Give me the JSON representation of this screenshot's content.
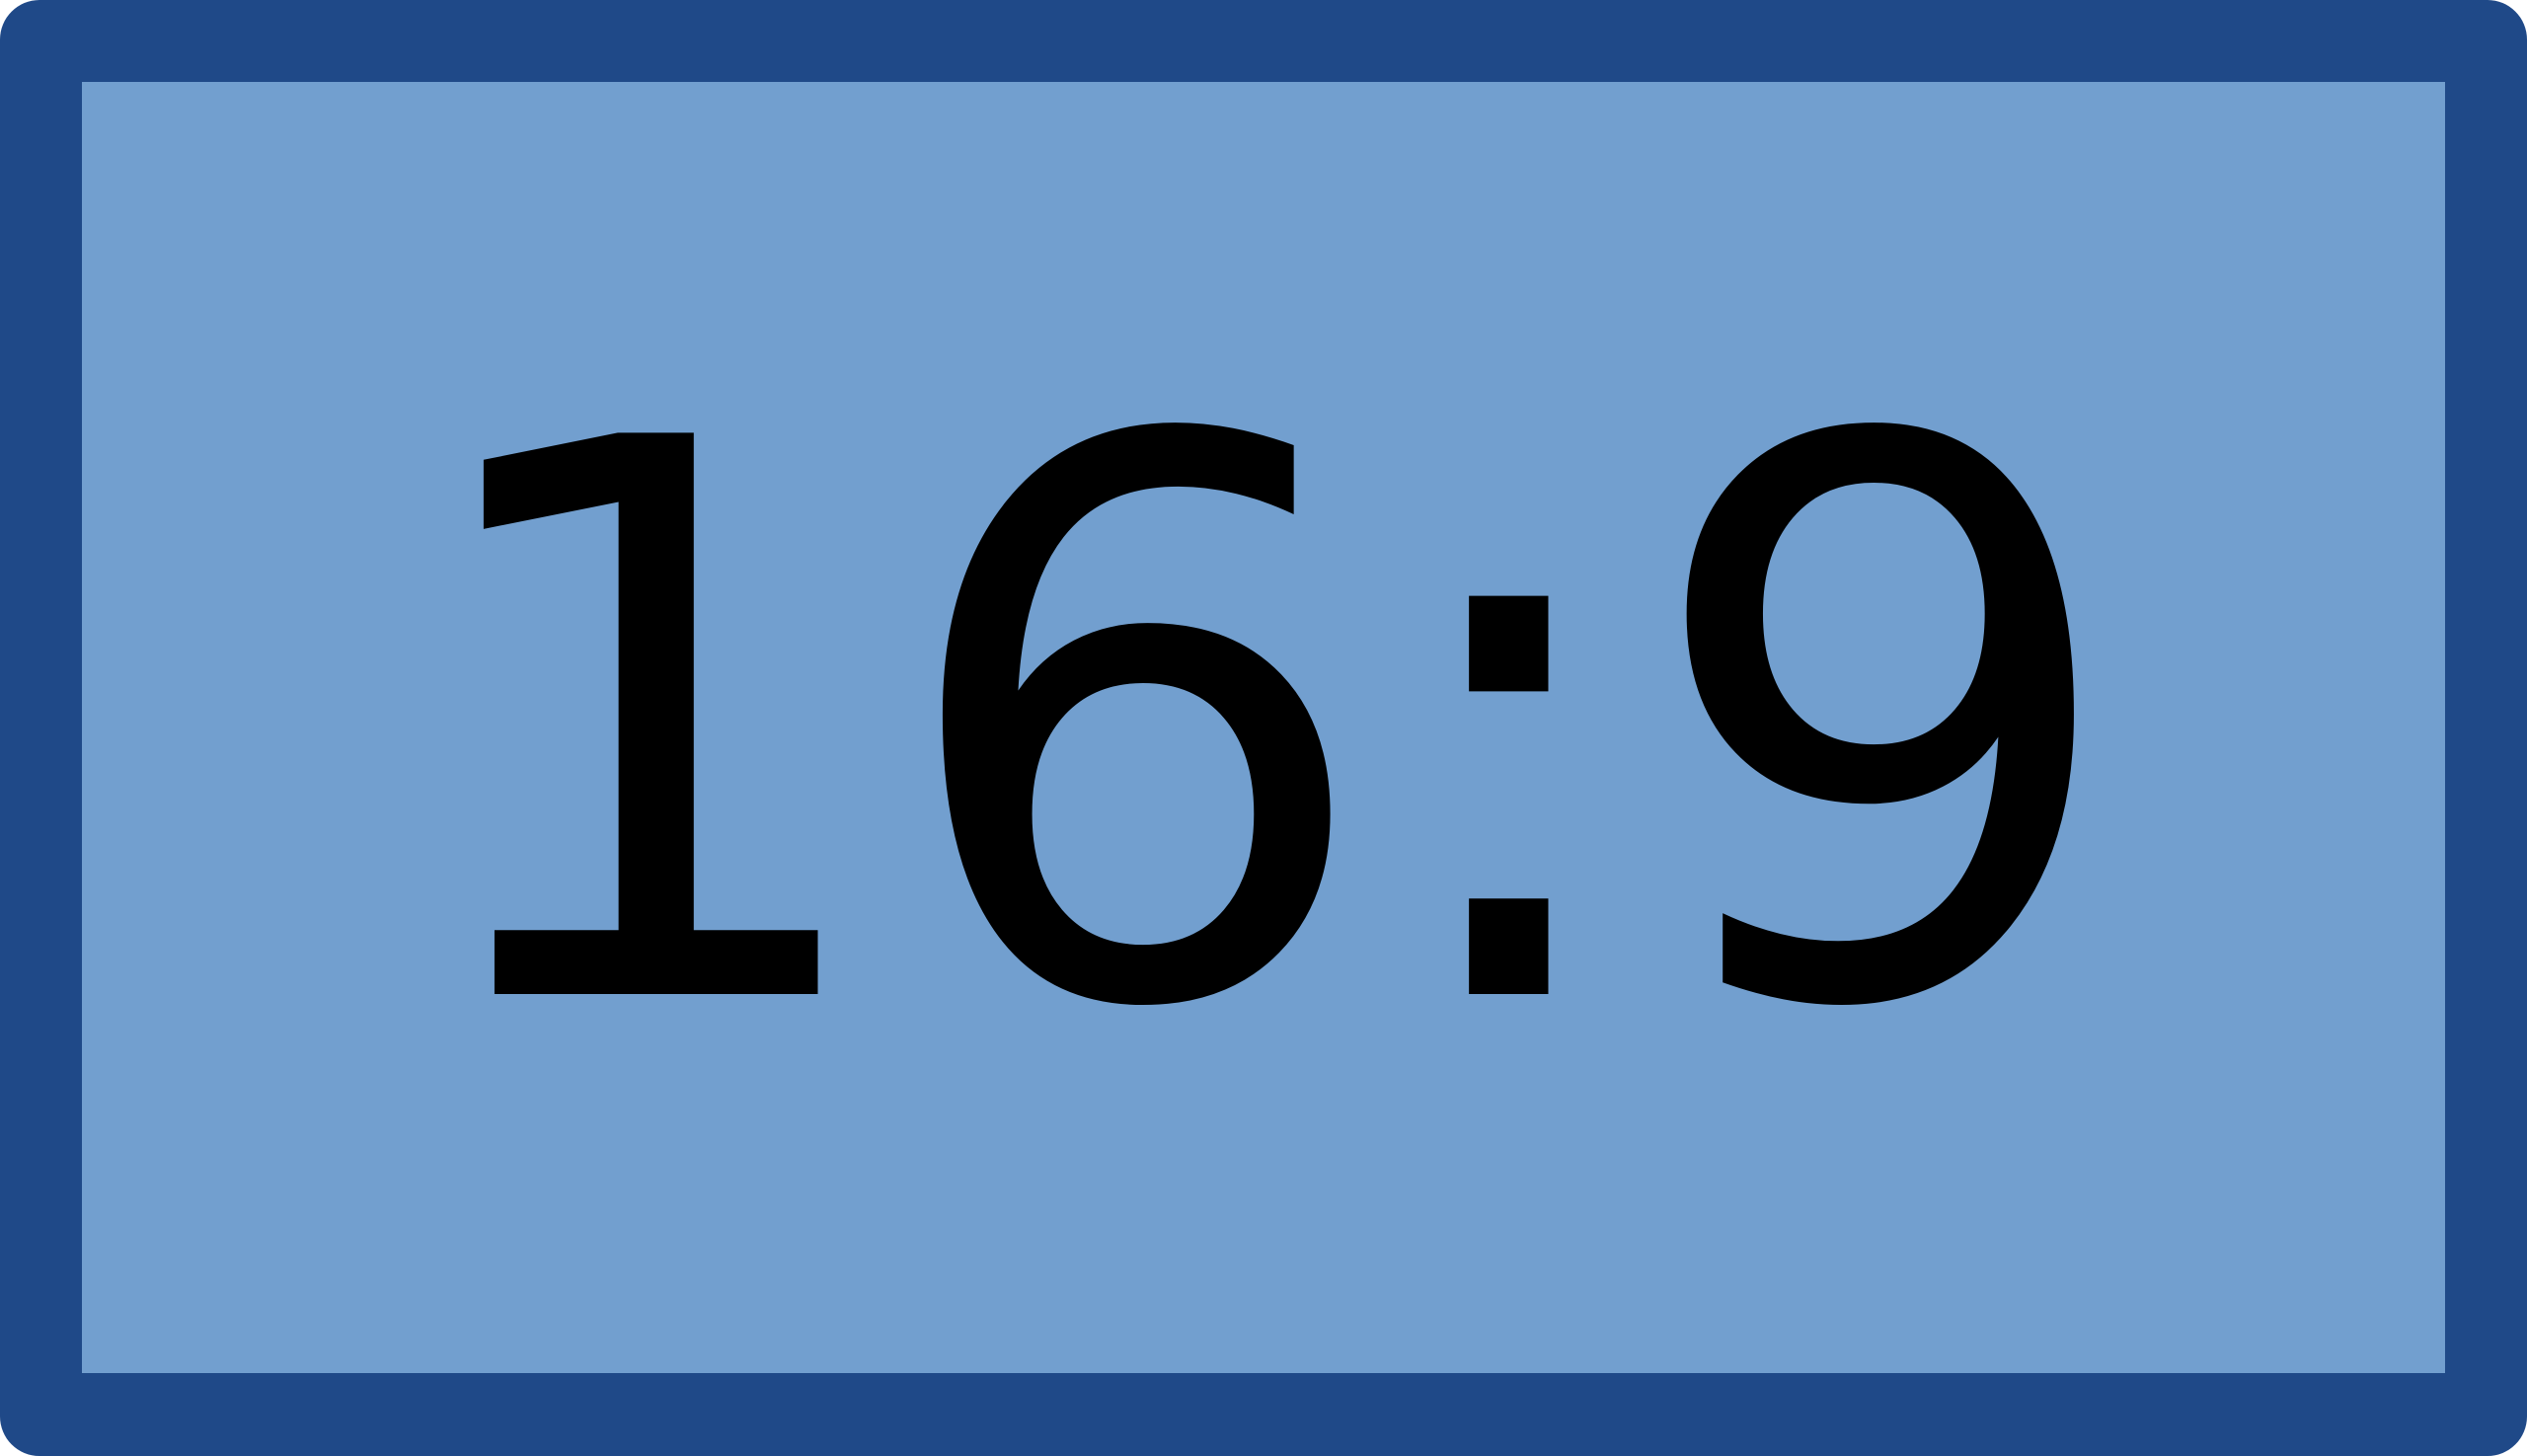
{
  "aspect_ratio_icon": {
    "label": "16:9",
    "colors": {
      "border": "#1f4988",
      "fill": "#729fcf",
      "text": "#000000"
    }
  }
}
